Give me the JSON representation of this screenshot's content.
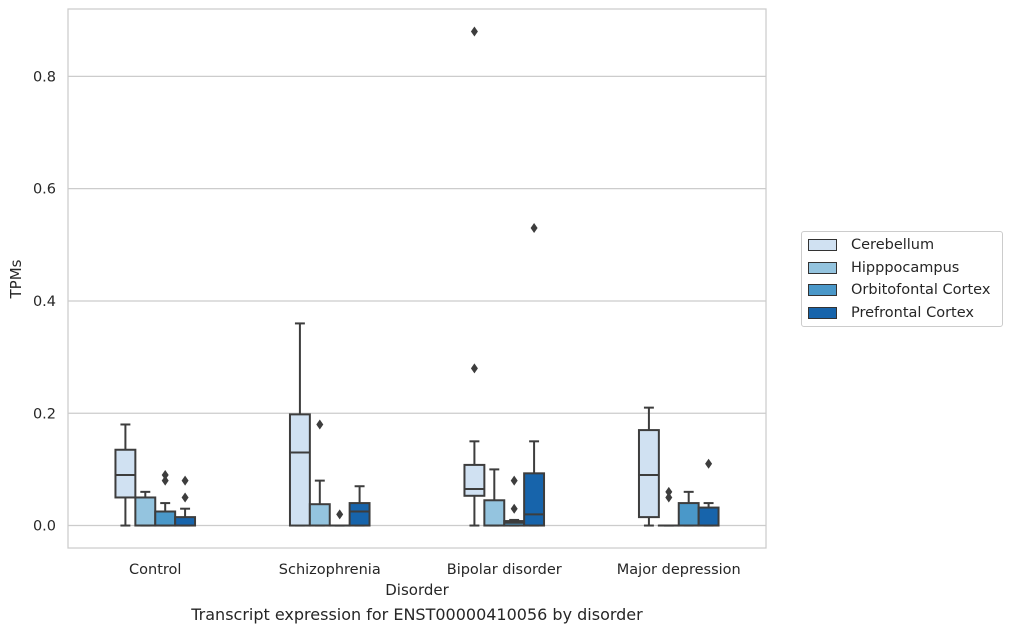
{
  "caption": "Transcript expression for ENST00000410056 by disorder",
  "chart_data": {
    "type": "box",
    "xlabel": "Disorder",
    "ylabel": "TPMs",
    "ylim": [
      -0.04,
      0.92
    ],
    "yticks": [
      0.0,
      0.2,
      0.4,
      0.6,
      0.8
    ],
    "ytick_labels": [
      "0.0",
      "0.2",
      "0.4",
      "0.6",
      "0.8"
    ],
    "grid": "horizontal",
    "legend_placement": "right, outside plot",
    "categories": [
      "Control",
      "Schizophrenia",
      "Bipolar disorder",
      "Major depression"
    ],
    "series": [
      {
        "name": "Cerebellum",
        "color": "#d0e1f2",
        "boxes": [
          {
            "whislo": 0.0,
            "q1": 0.05,
            "med": 0.09,
            "q3": 0.135,
            "whishi": 0.18,
            "fliers": []
          },
          {
            "whislo": 0.0,
            "q1": 0.0,
            "med": 0.13,
            "q3": 0.198,
            "whishi": 0.36,
            "fliers": []
          },
          {
            "whislo": 0.0,
            "q1": 0.053,
            "med": 0.065,
            "q3": 0.108,
            "whishi": 0.15,
            "fliers": [
              0.28,
              0.88
            ]
          },
          {
            "whislo": 0.0,
            "q1": 0.015,
            "med": 0.09,
            "q3": 0.17,
            "whishi": 0.21,
            "fliers": []
          }
        ]
      },
      {
        "name": "Hipppocampus",
        "color": "#94c4df",
        "boxes": [
          {
            "whislo": 0.0,
            "q1": 0.0,
            "med": 0.0,
            "q3": 0.05,
            "whishi": 0.06,
            "fliers": []
          },
          {
            "whislo": 0.0,
            "q1": 0.0,
            "med": 0.0,
            "q3": 0.038,
            "whishi": 0.08,
            "fliers": [
              0.18
            ]
          },
          {
            "whislo": 0.0,
            "q1": 0.0,
            "med": 0.0,
            "q3": 0.045,
            "whishi": 0.1,
            "fliers": []
          },
          {
            "whislo": 0.0,
            "q1": 0.0,
            "med": 0.0,
            "q3": 0.0,
            "whishi": 0.0,
            "fliers": [
              0.05,
              0.06
            ]
          }
        ]
      },
      {
        "name": "Orbitofontal Cortex",
        "color": "#4a98c9",
        "boxes": [
          {
            "whislo": 0.0,
            "q1": 0.0,
            "med": 0.0,
            "q3": 0.025,
            "whishi": 0.04,
            "fliers": [
              0.08,
              0.09
            ]
          },
          {
            "whislo": 0.0,
            "q1": 0.0,
            "med": 0.0,
            "q3": 0.0,
            "whishi": 0.0,
            "fliers": [
              0.02
            ]
          },
          {
            "whislo": 0.0,
            "q1": 0.0,
            "med": 0.005,
            "q3": 0.008,
            "whishi": 0.01,
            "fliers": [
              0.03,
              0.08
            ]
          },
          {
            "whislo": 0.0,
            "q1": 0.0,
            "med": 0.0,
            "q3": 0.04,
            "whishi": 0.06,
            "fliers": []
          }
        ]
      },
      {
        "name": "Prefrontal Cortex",
        "color": "#1764ab",
        "boxes": [
          {
            "whislo": 0.0,
            "q1": 0.0,
            "med": 0.0,
            "q3": 0.015,
            "whishi": 0.03,
            "fliers": [
              0.05,
              0.08
            ]
          },
          {
            "whislo": 0.0,
            "q1": 0.0,
            "med": 0.025,
            "q3": 0.04,
            "whishi": 0.07,
            "fliers": []
          },
          {
            "whislo": 0.0,
            "q1": 0.0,
            "med": 0.02,
            "q3": 0.093,
            "whishi": 0.15,
            "fliers": [
              0.53
            ]
          },
          {
            "whislo": 0.0,
            "q1": 0.0,
            "med": 0.0,
            "q3": 0.032,
            "whishi": 0.04,
            "fliers": [
              0.11
            ]
          }
        ]
      }
    ]
  }
}
